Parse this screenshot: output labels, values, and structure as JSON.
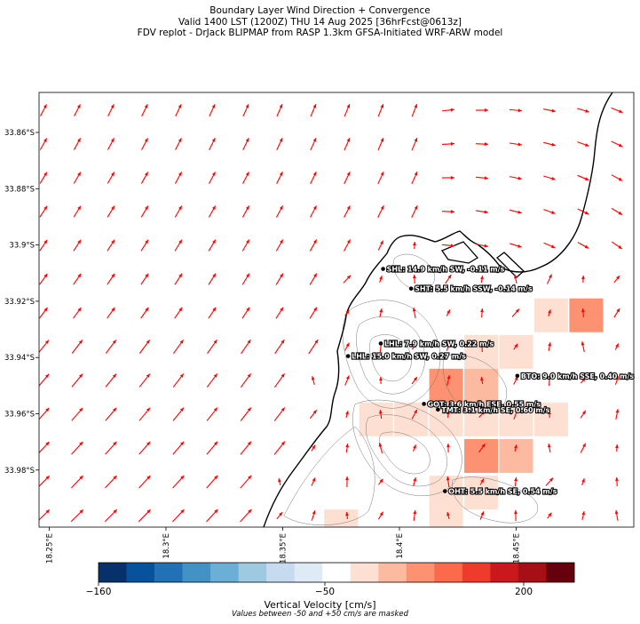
{
  "title": {
    "line1": "Boundary Layer Wind Direction + Convergence",
    "line2": "Valid 1400 LST (1200Z) THU 14 Aug 2025 [36hrFcst@0613z]",
    "line3": "FDV replot - DrJack BLIPMAP from RASP 1.3km GFSA-Initiated WRF-ARW model"
  },
  "axes": {
    "lat_ticks": [
      {
        "value": -33.86,
        "label": "33.86°S"
      },
      {
        "value": -33.88,
        "label": "33.88°S"
      },
      {
        "value": -33.9,
        "label": "33.9°S"
      },
      {
        "value": -33.92,
        "label": "33.92°S"
      },
      {
        "value": -33.94,
        "label": "33.94°S"
      },
      {
        "value": -33.96,
        "label": "33.96°S"
      },
      {
        "value": -33.98,
        "label": "33.98°S"
      }
    ],
    "lon_ticks": [
      {
        "value": 18.25,
        "label": "18.25°E"
      },
      {
        "value": 18.3,
        "label": "18.3°E"
      },
      {
        "value": 18.35,
        "label": "18.35°E"
      },
      {
        "value": 18.4,
        "label": "18.4°E"
      },
      {
        "value": 18.45,
        "label": "18.45°E"
      }
    ]
  },
  "stations": [
    {
      "id": "SHL",
      "label": "SHL: 14.9 km/h SW, -0.11 m/s",
      "lon": 18.393,
      "lat": -33.9085
    },
    {
      "id": "SHT",
      "label": "SHT: 5.5 km/h SSW, -0.14 m/s",
      "lon": 18.405,
      "lat": -33.9155
    },
    {
      "id": "LHL",
      "label": "LHL: 7.9 km/h SW, 0.22 m/s",
      "lon": 18.392,
      "lat": -33.935
    },
    {
      "id": "LHL2",
      "label": "LHL: 15.0 km/h SW, 0.27 m/s",
      "lon": 18.378,
      "lat": -33.9395
    },
    {
      "id": "BTO",
      "label": "BTO: 9.0 km/h SSE, 0.40 m/s",
      "lon": 18.4505,
      "lat": -33.9465
    },
    {
      "id": "GOT",
      "label": "GOT: 3.6 km/h ESE, 0.55 m/s",
      "lon": 18.4105,
      "lat": -33.9565
    },
    {
      "id": "TMT",
      "label": "TMT: 3.1 km/h SE, 0.60 m/s",
      "lon": 18.4165,
      "lat": -33.9585
    },
    {
      "id": "OHT",
      "label": "OHT: 5.5 km/h SE, 0.54 m/s",
      "lon": 18.4195,
      "lat": -33.9875
    }
  ],
  "colorbar": {
    "tick_labels": [
      "−160",
      "−50",
      "200"
    ],
    "label": "Vertical Velocity [cm/s]",
    "note": "Values between -50 and +50 cm/s are masked",
    "colors": [
      "#08306b",
      "#08519c",
      "#2171b5",
      "#4292c6",
      "#6baed6",
      "#9ecae1",
      "#c6dbef",
      "#deebf7",
      "#ffffff",
      "#fee0d2",
      "#fcbba1",
      "#fc9272",
      "#fb6a4a",
      "#ef3b2c",
      "#cb181d",
      "#a50f15",
      "#67000d"
    ]
  },
  "wind_arrow_color": "#ff0000",
  "convergence_cells": [
    {
      "lon": 18.465,
      "lat": -33.925,
      "level": 1
    },
    {
      "lon": 18.48,
      "lat": -33.925,
      "level": 3
    },
    {
      "lon": 18.435,
      "lat": -33.938,
      "level": 1
    },
    {
      "lon": 18.45,
      "lat": -33.938,
      "level": 1
    },
    {
      "lon": 18.42,
      "lat": -33.95,
      "level": 3
    },
    {
      "lon": 18.435,
      "lat": -33.95,
      "level": 2
    },
    {
      "lon": 18.39,
      "lat": -33.962,
      "level": 1
    },
    {
      "lon": 18.405,
      "lat": -33.962,
      "level": 1
    },
    {
      "lon": 18.42,
      "lat": -33.962,
      "level": 1
    },
    {
      "lon": 18.435,
      "lat": -33.962,
      "level": 1
    },
    {
      "lon": 18.45,
      "lat": -33.962,
      "level": 1
    },
    {
      "lon": 18.465,
      "lat": -33.962,
      "level": 1
    },
    {
      "lon": 18.435,
      "lat": -33.975,
      "level": 3
    },
    {
      "lon": 18.45,
      "lat": -33.975,
      "level": 2
    },
    {
      "lon": 18.42,
      "lat": -33.988,
      "level": 1
    },
    {
      "lon": 18.435,
      "lat": -33.988,
      "level": 1
    },
    {
      "lon": 18.375,
      "lat": -34.0,
      "level": 1
    },
    {
      "lon": 18.42,
      "lat": -34.0,
      "level": 1
    }
  ]
}
